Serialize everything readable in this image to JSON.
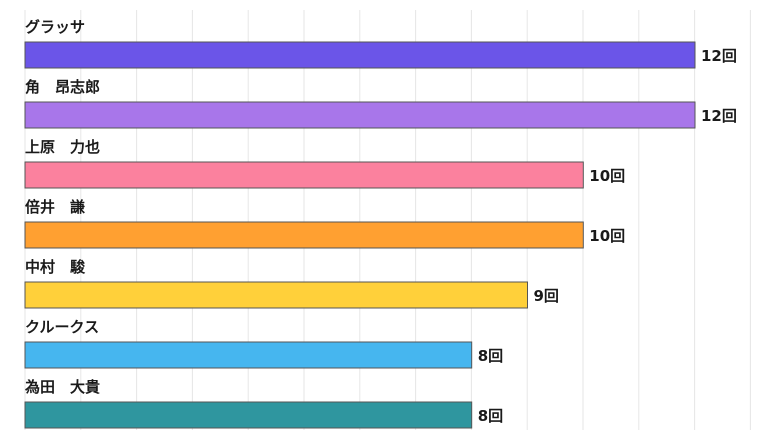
{
  "chart_data": {
    "type": "bar",
    "orientation": "horizontal",
    "categories": [
      "グラッサ",
      "角　昂志郎",
      "上原　力也",
      "倍井　謙",
      "中村　駿",
      "クルークス",
      "為田　大貴"
    ],
    "values": [
      12,
      12,
      10,
      10,
      9,
      8,
      8
    ],
    "value_labels": [
      "12回",
      "12回",
      "10回",
      "10回",
      "9回",
      "8回",
      "8回"
    ],
    "colors": [
      "#6b55e8",
      "#a876ea",
      "#fb819e",
      "#ffa031",
      "#ffd03a",
      "#46b6ef",
      "#2f969f"
    ],
    "bar_border_color": "#555555",
    "xlim": [
      0,
      12
    ],
    "grid": true,
    "grid_color": "#e6e6e6",
    "title": "",
    "xlabel": "",
    "ylabel": ""
  }
}
